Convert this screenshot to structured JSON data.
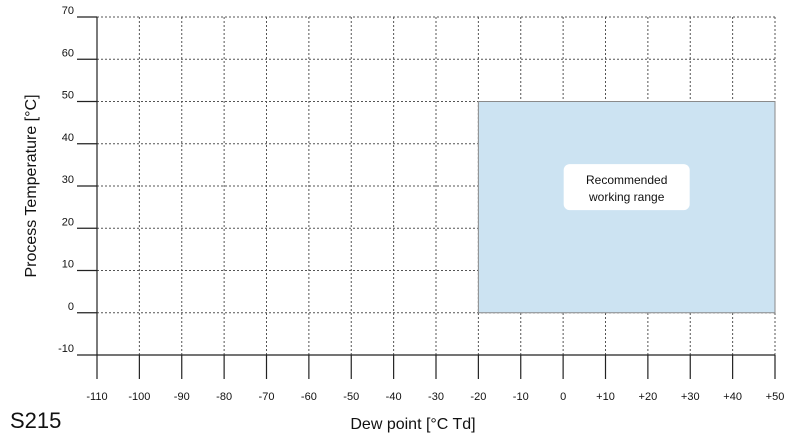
{
  "model_label": "S215",
  "chart_data": {
    "type": "area",
    "xlabel": "Dew point [°C Td]",
    "ylabel": "Process Temperature [°C]",
    "xlim": [
      -110,
      50
    ],
    "ylim": [
      -10,
      70
    ],
    "xticks": [
      -110,
      -100,
      -90,
      -80,
      -70,
      -60,
      -50,
      -40,
      -30,
      -20,
      -10,
      0,
      10,
      20,
      30,
      40,
      50
    ],
    "xtick_labels": [
      "-110",
      "-100",
      "-90",
      "-80",
      "-70",
      "-60",
      "-50",
      "-40",
      "-30",
      "-20",
      "-10",
      "0",
      "+10",
      "+20",
      "+30",
      "+40",
      "+50"
    ],
    "yticks": [
      -10,
      0,
      10,
      20,
      30,
      40,
      50,
      60,
      70
    ],
    "ytick_labels": [
      "-10",
      "0",
      "10",
      "20",
      "30",
      "40",
      "50",
      "60",
      "70"
    ],
    "grid": true,
    "region": {
      "x": [
        -20,
        50
      ],
      "y": [
        0,
        50
      ],
      "color": "#cce3f2",
      "label_lines": [
        "Recommended",
        "working range"
      ]
    }
  }
}
